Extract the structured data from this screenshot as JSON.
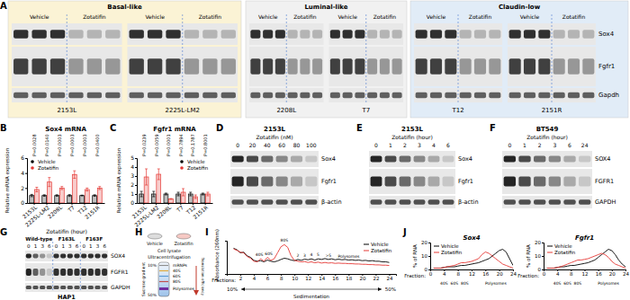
{
  "panels": {
    "labels": [
      "A",
      "B",
      "C",
      "D",
      "E",
      "F",
      "G",
      "H",
      "I",
      "J"
    ]
  },
  "blots": {
    "A": {
      "groups": [
        {
          "title": "Basal-like",
          "lines": [
            "2153L",
            "2225L-LM2"
          ]
        },
        {
          "title": "Luminal-like",
          "lines": [
            "2208L",
            "T7"
          ]
        },
        {
          "title": "Claudin-low",
          "lines": [
            "T12",
            "2151R"
          ]
        }
      ],
      "conditions": [
        "Vehicle",
        "Zotatifin"
      ],
      "rows": [
        "Sox4",
        "Fgfr1",
        "Gapdh"
      ]
    },
    "D": {
      "cell": "2153L",
      "treatment": "Zotatifin (nM)",
      "lanes": [
        "0",
        "20",
        "40",
        "60",
        "80",
        "100"
      ],
      "rows": [
        "Sox4",
        "Fgfr1",
        "β-actin"
      ]
    },
    "E": {
      "cell": "2153L",
      "treatment": "Zotatifin (hour)",
      "lanes": [
        "0",
        "1",
        "2",
        "3",
        "4",
        "6"
      ],
      "rows": [
        "Sox4",
        "Fgfr1",
        "β-actin"
      ]
    },
    "F": {
      "cell": "BT549",
      "treatment": "Zotatifin (hour)",
      "lanes": [
        "0",
        "1",
        "2",
        "3",
        "6",
        "24"
      ],
      "rows": [
        "SOX4",
        "FGFR1",
        "GAPDH"
      ]
    },
    "G": {
      "cell": "HAP1",
      "treatment": "Zotatifin (hour)",
      "genotypes": [
        "Wild-type",
        "F163L",
        "F163F"
      ],
      "lanes": [
        "0",
        "1",
        "3",
        "6"
      ],
      "rows": [
        "SOX4",
        "FGFR1",
        "GAPDH"
      ]
    }
  },
  "diagram": {
    "conditions": [
      "Vehicle",
      "Zotatifin"
    ],
    "steps": [
      "Cell lysate",
      "Ultracentrifugation"
    ],
    "gradient_label": "Sucrose gradient",
    "gradient_ends": [
      "10%",
      "50%"
    ],
    "fractions": [
      "mRNPs",
      "40S",
      "60S",
      "80S",
      "Polysomes"
    ],
    "readout": "Translation efficiency"
  },
  "chart_data": [
    {
      "type": "bar",
      "title": "Sox4 mRNA",
      "y_label": "Relative mRNA expression",
      "categories": [
        "2153L",
        "2225L-LM2",
        "2208L",
        "T7",
        "T12",
        "2151R"
      ],
      "series": [
        {
          "name": "Vehicle",
          "color": "#000000",
          "values": [
            1,
            1,
            1,
            1,
            1,
            1
          ],
          "errors": [
            0.15,
            0.1,
            0.1,
            0.12,
            0.05,
            0.1
          ]
        },
        {
          "name": "Zotatifin",
          "color": "#e53935",
          "values": [
            1.8,
            2.8,
            2.0,
            3.8,
            1.8,
            2.0
          ],
          "errors": [
            0.3,
            0.6,
            0.2,
            0.5,
            0.2,
            0.2
          ]
        }
      ],
      "annotations": [
        "P=0.0028",
        "P=0.0140",
        "P=0.0003",
        "P=0.0003",
        "P=0.0003",
        "P=0.0400"
      ],
      "ylim": [
        0,
        6
      ],
      "yticks": [
        0,
        2,
        4,
        6
      ],
      "legend": "upper left"
    },
    {
      "type": "bar",
      "title": "Fgfr1 mRNA",
      "y_label": "Relative mRNA expression",
      "categories": [
        "2153L",
        "2225L-LM2",
        "2208L",
        "T7",
        "T12",
        "2151R"
      ],
      "series": [
        {
          "name": "Vehicle",
          "color": "#000000",
          "values": [
            1,
            1,
            1,
            1,
            1,
            1
          ],
          "errors": [
            0.3,
            0.3,
            0.1,
            0.2,
            0.2,
            0.1
          ]
        },
        {
          "name": "Zotatifin",
          "color": "#e53935",
          "values": [
            2.9,
            3.2,
            0.45,
            1.2,
            0.7,
            1.0
          ],
          "errors": [
            0.9,
            0.6,
            0.05,
            0.4,
            0.2,
            0.2
          ]
        }
      ],
      "annotations": [
        "P=0.0239",
        "P=0.0059",
        "P=0.0001",
        "P=0.7894",
        "P=0.1787",
        "P=0.8001"
      ],
      "ylim": [
        0,
        5
      ],
      "yticks": [
        0,
        1,
        2,
        3,
        4,
        5
      ],
      "legend": "upper right"
    },
    {
      "type": "line",
      "y_label": "Absorbance (260nm)",
      "x_label": "Fractions:",
      "x": [
        1,
        1.5,
        2,
        2.5,
        3,
        3.5,
        4,
        4.5,
        5,
        5.5,
        6,
        6.5,
        7,
        7.5,
        8,
        8.5,
        9,
        9.5,
        10,
        10.5,
        11,
        11.5,
        12,
        12.5,
        13,
        13.5,
        14,
        14.5,
        15,
        15.5,
        16,
        16.5,
        17,
        17.5,
        18,
        18.5,
        19,
        19.5,
        20,
        20.5,
        21,
        21.5,
        22,
        22.5,
        23,
        23.5,
        24
      ],
      "series": [
        {
          "name": "Vehicle",
          "color": "#000000",
          "values": [
            0.85,
            0.8,
            0.7,
            0.72,
            0.6,
            0.55,
            0.45,
            0.42,
            0.44,
            0.4,
            0.46,
            0.42,
            0.4,
            0.43,
            0.48,
            0.52,
            0.5,
            0.46,
            0.44,
            0.48,
            0.45,
            0.49,
            0.47,
            0.5,
            0.46,
            0.5,
            0.48,
            0.51,
            0.48,
            0.5,
            0.47,
            0.49,
            0.47,
            0.48,
            0.46,
            0.47,
            0.45,
            0.46,
            0.44,
            0.45,
            0.43,
            0.44,
            0.42,
            0.42,
            0.4,
            0.4,
            0.38
          ]
        },
        {
          "name": "Zotatifin",
          "color": "#e53935",
          "values": [
            0.83,
            0.78,
            0.72,
            0.7,
            0.58,
            0.52,
            0.42,
            0.4,
            0.5,
            0.42,
            0.55,
            0.45,
            0.5,
            0.7,
            0.9,
            0.97,
            0.88,
            0.6,
            0.45,
            0.42,
            0.4,
            0.41,
            0.38,
            0.4,
            0.37,
            0.39,
            0.36,
            0.38,
            0.36,
            0.37,
            0.35,
            0.36,
            0.35,
            0.35,
            0.34,
            0.34,
            0.33,
            0.33,
            0.32,
            0.32,
            0.31,
            0.31,
            0.3,
            0.3,
            0.29,
            0.29,
            0.28
          ]
        }
      ],
      "xlim": [
        0,
        25
      ],
      "xticks": [
        2,
        4,
        6,
        8,
        10,
        12,
        14,
        16,
        18,
        20,
        22,
        24
      ],
      "ylim": [
        0,
        1.1
      ],
      "tick_labels": "x",
      "legend": "upper right",
      "annotations": [
        {
          "text": "40S",
          "x": 4.8
        },
        {
          "text": "60S",
          "x": 6.2
        },
        {
          "text": "80S",
          "x": 8.5
        },
        {
          "text": "2",
          "x": 10.5
        },
        {
          "text": "3",
          "x": 11.5
        },
        {
          "text": "4",
          "x": 12.5
        },
        {
          "text": "5",
          "x": 13.5
        },
        {
          "text": ">5",
          "x": 15
        },
        {
          "text": "Polysomes",
          "x": 18
        }
      ],
      "gradient": {
        "label": "Sedimentation",
        "start": "10%",
        "end": "50%"
      }
    },
    {
      "type": "line",
      "title": "Sox4",
      "y_label": "% of RNA",
      "x_label": "Fraction:",
      "x": [
        1,
        2,
        3,
        4,
        5,
        6,
        7,
        8,
        9,
        10,
        11,
        12,
        13,
        14,
        15,
        16,
        17,
        18,
        19,
        20,
        21,
        22,
        23,
        24
      ],
      "series": [
        {
          "name": "Vehicle",
          "color": "#000000",
          "values": [
            1,
            1,
            1,
            1.5,
            2,
            2,
            2,
            2.5,
            3,
            3,
            3.5,
            4,
            4.5,
            5,
            6,
            7,
            8,
            10,
            12,
            14,
            15,
            13,
            8,
            3
          ]
        },
        {
          "name": "Zotatifin",
          "color": "#e53935",
          "values": [
            1,
            1,
            1,
            1.5,
            2,
            2.5,
            3,
            4,
            5,
            5,
            5.5,
            6,
            7,
            8,
            11,
            13,
            12,
            10,
            8,
            6,
            4,
            3,
            2,
            1
          ]
        }
      ],
      "xlim": [
        0,
        24
      ],
      "xticks": [
        0,
        4,
        8,
        12,
        16,
        20,
        24
      ],
      "ylim": [
        0,
        20
      ],
      "yticks": [
        0,
        10,
        20
      ],
      "legend": "upper left",
      "annotations": [
        {
          "text": "40S",
          "x": 4
        },
        {
          "text": "60S",
          "x": 7
        },
        {
          "text": "80S",
          "x": 10
        },
        {
          "text": "Polysomes",
          "x": 19
        }
      ]
    },
    {
      "type": "line",
      "title": "Fgfr1",
      "y_label": "% of RNA",
      "x_label": "Fraction:",
      "x": [
        1,
        2,
        3,
        4,
        5,
        6,
        7,
        8,
        9,
        10,
        11,
        12,
        13,
        14,
        15,
        16,
        17,
        18,
        19,
        20,
        21,
        22,
        23,
        24
      ],
      "series": [
        {
          "name": "Vehicle",
          "color": "#000000",
          "values": [
            1,
            1,
            1,
            1.5,
            2,
            2,
            2.5,
            3,
            3,
            3.5,
            4,
            4.5,
            5,
            6,
            7,
            9,
            11,
            13,
            15,
            14,
            11,
            7,
            4,
            2
          ]
        },
        {
          "name": "Zotatifin",
          "color": "#e53935",
          "values": [
            1,
            1,
            1,
            1.5,
            2,
            3,
            4,
            5,
            6,
            7,
            7,
            7.5,
            8,
            9,
            10,
            11,
            12,
            11,
            9,
            6,
            4,
            3,
            2,
            1
          ]
        }
      ],
      "xlim": [
        0,
        24
      ],
      "xticks": [
        0,
        4,
        8,
        12,
        16,
        20,
        24
      ],
      "ylim": [
        0,
        20
      ],
      "yticks": [
        0,
        10,
        20
      ],
      "legend": "upper left",
      "annotations": [
        {
          "text": "40S",
          "x": 4
        },
        {
          "text": "60S",
          "x": 7
        },
        {
          "text": "80S",
          "x": 10
        },
        {
          "text": "Polysomes",
          "x": 19
        }
      ]
    }
  ]
}
